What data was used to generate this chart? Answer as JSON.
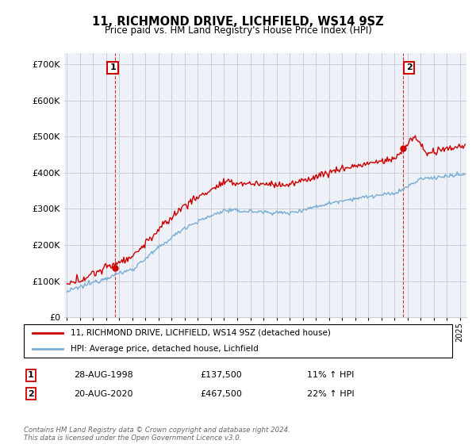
{
  "title": "11, RICHMOND DRIVE, LICHFIELD, WS14 9SZ",
  "subtitle": "Price paid vs. HM Land Registry's House Price Index (HPI)",
  "ytick_values": [
    0,
    100000,
    200000,
    300000,
    400000,
    500000,
    600000,
    700000
  ],
  "ylim": [
    0,
    730000
  ],
  "xlim_start": 1994.8,
  "xlim_end": 2025.5,
  "purchase1_x": 1998.65,
  "purchase1_y": 137500,
  "purchase2_x": 2020.63,
  "purchase2_y": 467500,
  "legend_red": "11, RICHMOND DRIVE, LICHFIELD, WS14 9SZ (detached house)",
  "legend_blue": "HPI: Average price, detached house, Lichfield",
  "table_row1": [
    "1",
    "28-AUG-1998",
    "£137,500",
    "11% ↑ HPI"
  ],
  "table_row2": [
    "2",
    "20-AUG-2020",
    "£467,500",
    "22% ↑ HPI"
  ],
  "footer": "Contains HM Land Registry data © Crown copyright and database right 2024.\nThis data is licensed under the Open Government Licence v3.0.",
  "red_color": "#cc0000",
  "blue_color": "#7aadd4",
  "grid_color": "#c8cdd6",
  "bg_color": "#eef0f7",
  "plot_bg": "#eef2f8"
}
